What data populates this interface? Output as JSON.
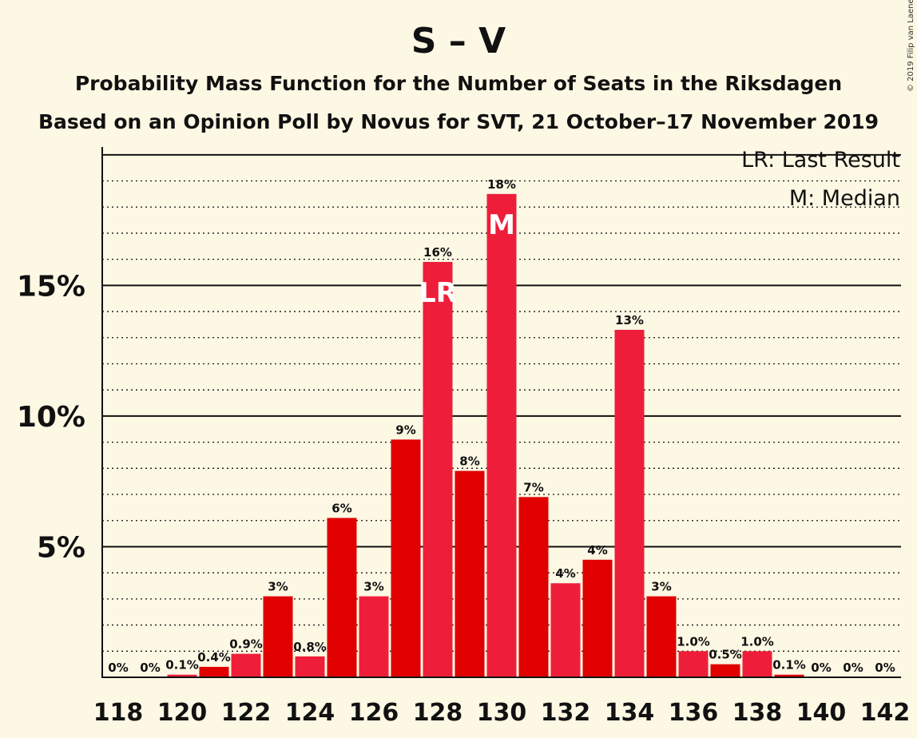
{
  "chart_data": {
    "type": "bar",
    "title": "S – V",
    "subtitle_1": "Probability Mass Function for the Number of Seats in the Riksdagen",
    "subtitle_2": "Based on an Opinion Poll by Novus for SVT, 21 October–17 November 2019",
    "copyright": "© 2019 Filip van Laenen",
    "legend": [
      "LR: Last Result",
      "M: Median"
    ],
    "legend_position": "top-right",
    "x": [
      118,
      119,
      120,
      121,
      122,
      123,
      124,
      125,
      126,
      127,
      128,
      129,
      130,
      131,
      132,
      133,
      134,
      135,
      136,
      137,
      138,
      139,
      140,
      141,
      142
    ],
    "x_tick_labels": [
      "118",
      "120",
      "122",
      "124",
      "126",
      "128",
      "130",
      "132",
      "134",
      "136",
      "138",
      "140",
      "142"
    ],
    "values": [
      0,
      0,
      0.1,
      0.4,
      0.9,
      3.1,
      0.8,
      6.1,
      3.1,
      9.1,
      15.9,
      7.9,
      18.5,
      6.9,
      3.6,
      4.5,
      13.3,
      3.1,
      1.0,
      0.5,
      1.0,
      0.1,
      0,
      0,
      0
    ],
    "data_labels": [
      "0%",
      "0%",
      "0.1%",
      "0.4%",
      "0.9%",
      "3%",
      "0.8%",
      "6%",
      "3%",
      "9%",
      "16%",
      "8%",
      "18%",
      "7%",
      "4%",
      "4%",
      "13%",
      "3%",
      "1.0%",
      "0.5%",
      "1.0%",
      "0.1%",
      "0%",
      "0%",
      "0%"
    ],
    "y_tick_labels": [
      "5%",
      "10%",
      "15%"
    ],
    "y_ticks": [
      5,
      10,
      15
    ],
    "ylim": [
      0,
      20.3
    ],
    "last_result_seat": 128,
    "last_result_label": "LR",
    "median_seat": 130,
    "median_label": "M",
    "colors": {
      "bar_dark": "#e00000",
      "bar_light": "#ee1e3a",
      "background": "#fdf8e4"
    },
    "grid": true
  }
}
